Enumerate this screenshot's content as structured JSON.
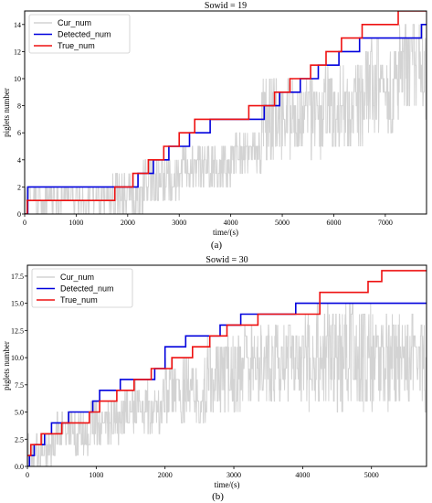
{
  "colors": {
    "cur": "#d3d3d3",
    "detected": "#0000dd",
    "true": "#ee1111"
  },
  "chart_data": [
    {
      "type": "line",
      "title": "Sowid = 19",
      "xlabel": "time/(s)",
      "ylabel": "piglets number",
      "xlim": [
        0,
        7800
      ],
      "ylim": [
        0,
        15
      ],
      "xticks": [
        0,
        1000,
        2000,
        3000,
        4000,
        5000,
        6000,
        7000
      ],
      "yticks": [
        0,
        2,
        4,
        6,
        8,
        10,
        12,
        14
      ],
      "ytick_decimals": 0,
      "legend": "top-left",
      "caption": "(a)",
      "series": [
        {
          "name": "Cur_num",
          "style": "noise",
          "bands": [
            [
              0,
              0,
              2
            ],
            [
              1700,
              0,
              3
            ],
            [
              2300,
              1,
              4
            ],
            [
              3000,
              2,
              5
            ],
            [
              4000,
              3,
              6
            ],
            [
              4600,
              4,
              10
            ],
            [
              5800,
              5,
              11
            ],
            [
              6600,
              6,
              13
            ],
            [
              7200,
              7,
              14
            ]
          ]
        },
        {
          "name": "Detected_num",
          "style": "step",
          "x": [
            0,
            60,
            1800,
            2200,
            2500,
            2800,
            3200,
            3600,
            4650,
            4950,
            5350,
            5700,
            6100,
            6500,
            6950,
            7700,
            7800
          ],
          "y": [
            0,
            2,
            2,
            3,
            4,
            5,
            6,
            7,
            8,
            9,
            10,
            11,
            12,
            13,
            13,
            14,
            14
          ]
        },
        {
          "name": "True_num",
          "style": "step",
          "x": [
            0,
            50,
            1750,
            2100,
            2400,
            2700,
            3000,
            3300,
            4350,
            4850,
            5150,
            5550,
            5850,
            6150,
            6550,
            6850,
            7250,
            7800
          ],
          "y": [
            0,
            1,
            2,
            3,
            4,
            5,
            6,
            7,
            8,
            9,
            10,
            11,
            12,
            13,
            14,
            14,
            15,
            15
          ]
        }
      ]
    },
    {
      "type": "line",
      "title": "Sowid = 30",
      "xlabel": "time/(s)",
      "ylabel": "piglets number",
      "xlim": [
        0,
        5800
      ],
      "ylim": [
        0,
        18.5
      ],
      "xticks": [
        0,
        1000,
        2000,
        3000,
        4000,
        5000
      ],
      "yticks": [
        0.0,
        2.5,
        5.0,
        7.5,
        10.0,
        12.5,
        15.0,
        17.5
      ],
      "ytick_decimals": 1,
      "legend": "top-left",
      "caption": "(b)",
      "series": [
        {
          "name": "Cur_num",
          "style": "noise",
          "bands": [
            [
              0,
              0,
              3
            ],
            [
              400,
              1,
              5
            ],
            [
              900,
              2,
              6
            ],
            [
              1400,
              3,
              8
            ],
            [
              2000,
              4,
              10
            ],
            [
              2600,
              5,
              12
            ],
            [
              3100,
              6,
              13
            ],
            [
              4000,
              5,
              15
            ],
            [
              5000,
              5,
              14
            ]
          ]
        },
        {
          "name": "Detected_num",
          "style": "step",
          "x": [
            0,
            30,
            100,
            250,
            350,
            600,
            950,
            1050,
            1350,
            1600,
            1850,
            2000,
            2300,
            2500,
            2800,
            3100,
            3400,
            3900,
            5800
          ],
          "y": [
            0,
            1,
            2,
            3,
            4,
            5,
            6,
            7,
            8,
            8,
            9,
            11,
            12,
            12,
            13,
            14,
            14,
            15,
            15
          ]
        },
        {
          "name": "True_num",
          "style": "step",
          "x": [
            0,
            50,
            200,
            350,
            500,
            900,
            1050,
            1300,
            1550,
            1800,
            2100,
            2400,
            2650,
            2900,
            3350,
            3600,
            4250,
            4950,
            5150,
            5800
          ],
          "y": [
            1,
            2,
            3,
            3,
            4,
            5,
            6,
            7,
            8,
            9,
            10,
            11,
            12,
            13,
            14,
            14,
            16,
            17,
            18,
            18
          ]
        }
      ]
    }
  ]
}
